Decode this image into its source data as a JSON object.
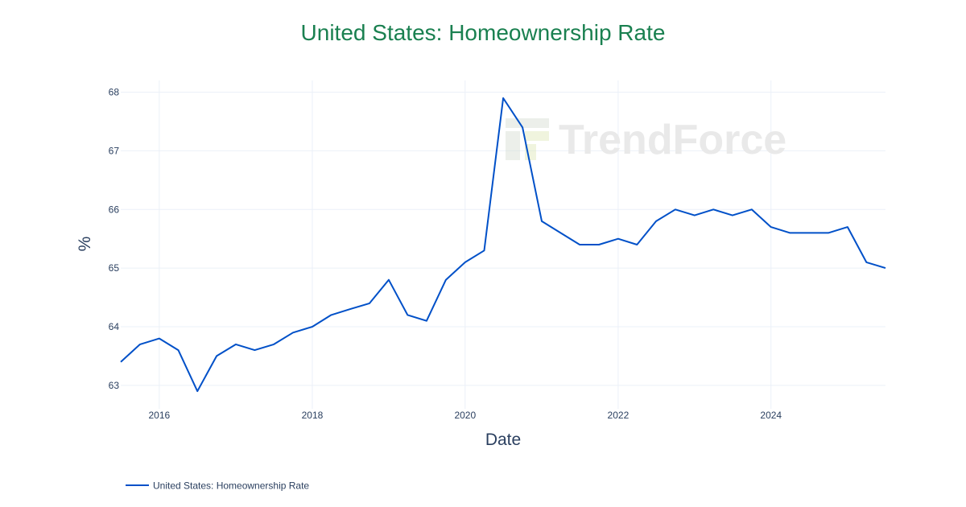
{
  "chart_data": {
    "type": "line",
    "title": "United States: Homeownership Rate",
    "xlabel": "Date",
    "ylabel": "%",
    "x_ticks": [
      "2016",
      "2018",
      "2020",
      "2022",
      "2024"
    ],
    "y_ticks": [
      63,
      64,
      65,
      66,
      67,
      68
    ],
    "xlim": [
      "2015-07-01",
      "2025-07-01"
    ],
    "ylim": [
      62.6,
      68.2
    ],
    "grid": true,
    "legend": "bottom-left",
    "watermark": "TrendForce",
    "series": [
      {
        "name": "United States: Homeownership Rate",
        "color": "#0050c8",
        "x": [
          "2015-07-01",
          "2015-10-01",
          "2016-01-01",
          "2016-04-01",
          "2016-07-01",
          "2016-10-01",
          "2017-01-01",
          "2017-04-01",
          "2017-07-01",
          "2017-10-01",
          "2018-01-01",
          "2018-04-01",
          "2018-07-01",
          "2018-10-01",
          "2019-01-01",
          "2019-04-01",
          "2019-07-01",
          "2019-10-01",
          "2020-01-01",
          "2020-04-01",
          "2020-07-01",
          "2020-10-01",
          "2021-01-01",
          "2021-04-01",
          "2021-07-01",
          "2021-10-01",
          "2022-01-01",
          "2022-04-01",
          "2022-07-01",
          "2022-10-01",
          "2023-01-01",
          "2023-04-01",
          "2023-07-01",
          "2023-10-01",
          "2024-01-01",
          "2024-04-01",
          "2024-07-01",
          "2024-10-01",
          "2025-01-01",
          "2025-04-01",
          "2025-07-01"
        ],
        "values": [
          63.4,
          63.7,
          63.8,
          63.6,
          62.9,
          63.5,
          63.7,
          63.6,
          63.7,
          63.9,
          64.0,
          64.2,
          64.3,
          64.4,
          64.8,
          64.2,
          64.1,
          64.8,
          65.1,
          65.3,
          67.9,
          67.4,
          65.8,
          65.6,
          65.4,
          65.4,
          65.5,
          65.4,
          65.8,
          66.0,
          65.9,
          66.0,
          65.9,
          66.0,
          65.7,
          65.6,
          65.6,
          65.6,
          65.7,
          65.1,
          65.0
        ]
      }
    ]
  },
  "colors": {
    "title": "#1a8050",
    "grid": "#ebf0f8",
    "text": "#2a3f5f"
  }
}
